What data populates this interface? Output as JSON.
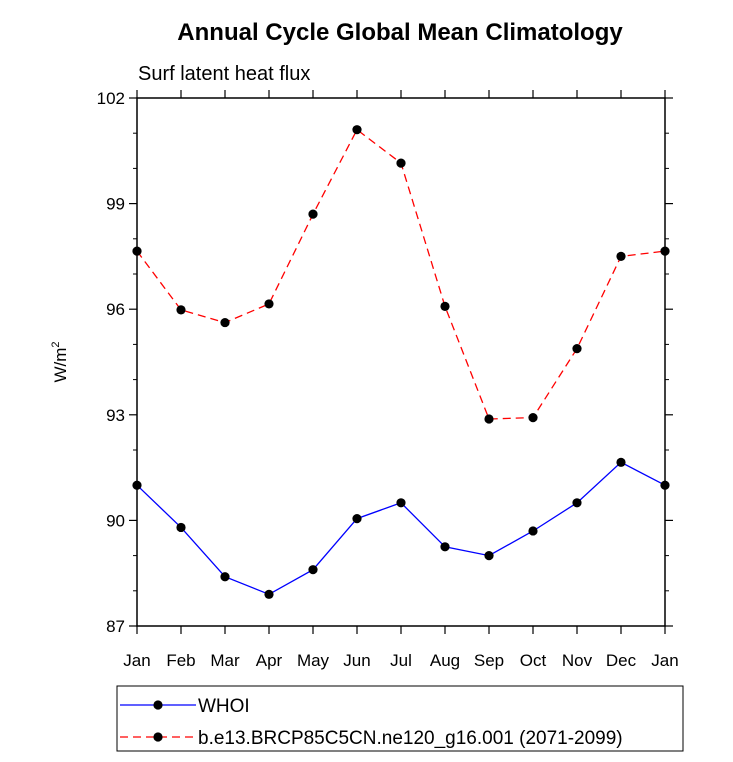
{
  "chart_data": {
    "type": "line",
    "title": "Annual Cycle Global Mean Climatology",
    "subtitle": "Surf latent heat flux",
    "xlabel": "",
    "ylabel_main": "W/m",
    "ylabel_sup": "2",
    "categories": [
      "Jan",
      "Feb",
      "Mar",
      "Apr",
      "May",
      "Jun",
      "Jul",
      "Aug",
      "Sep",
      "Oct",
      "Nov",
      "Dec",
      "Jan"
    ],
    "ylim": [
      87,
      102
    ],
    "yticks": [
      87,
      90,
      93,
      96,
      99,
      102
    ],
    "ytick_labels": [
      "87",
      "90",
      "93",
      "96",
      "99",
      "102"
    ],
    "series": [
      {
        "name": "WHOI",
        "color": "#0000ff",
        "dash": "solid",
        "values": [
          91.0,
          89.8,
          88.4,
          87.9,
          88.6,
          90.05,
          90.5,
          89.25,
          89.0,
          89.7,
          90.5,
          91.65,
          91.0
        ]
      },
      {
        "name": "b.e13.BRCP85C5CN.ne120_g16.001 (2071-2099)",
        "color": "#ff0000",
        "dash": "dashed",
        "values": [
          97.65,
          95.98,
          95.62,
          96.15,
          98.7,
          101.1,
          100.15,
          96.08,
          92.88,
          92.92,
          94.88,
          97.5,
          97.65
        ]
      }
    ]
  }
}
